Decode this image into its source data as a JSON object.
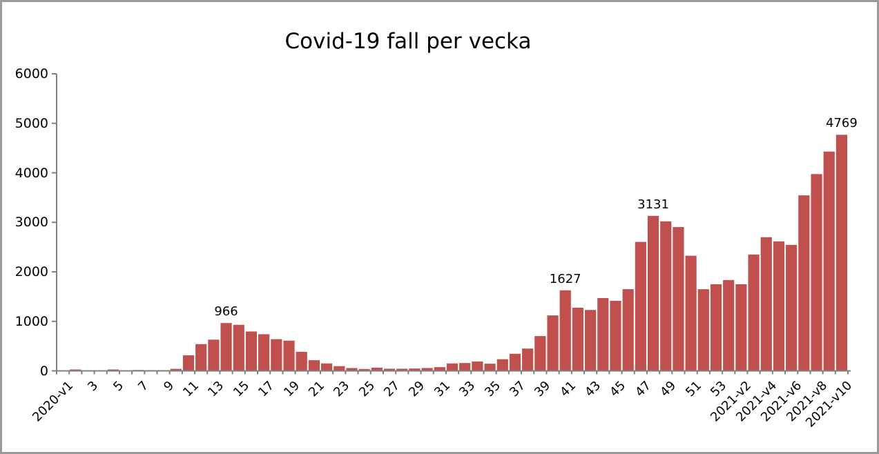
{
  "frame": {
    "background_color": "#ffffff",
    "border_color": "#9a9a9a"
  },
  "chart_data": {
    "type": "bar",
    "title": "Covid-19 fall per vecka",
    "xlabel": "",
    "ylabel": "",
    "ylim": [
      0,
      6000
    ],
    "yticks": [
      0,
      1000,
      2000,
      3000,
      4000,
      5000,
      6000
    ],
    "grid": false,
    "legend": null,
    "bar_color": "#C0504D",
    "axis_color": "#808080",
    "text_color": "#000000",
    "categories": [
      "2020-v1",
      "2020-v2",
      "2020-v3",
      "2020-v4",
      "2020-v5",
      "2020-v6",
      "2020-v7",
      "2020-v8",
      "2020-v9",
      "2020-v10",
      "2020-v11",
      "2020-v12",
      "2020-v13",
      "2020-v14",
      "2020-v15",
      "2020-v16",
      "2020-v17",
      "2020-v18",
      "2020-v19",
      "2020-v20",
      "2020-v21",
      "2020-v22",
      "2020-v23",
      "2020-v24",
      "2020-v25",
      "2020-v26",
      "2020-v27",
      "2020-v28",
      "2020-v29",
      "2020-v30",
      "2020-v31",
      "2020-v32",
      "2020-v33",
      "2020-v34",
      "2020-v35",
      "2020-v36",
      "2020-v37",
      "2020-v38",
      "2020-v39",
      "2020-v40",
      "2020-v41",
      "2020-v42",
      "2020-v43",
      "2020-v44",
      "2020-v45",
      "2020-v46",
      "2020-v47",
      "2020-v48",
      "2020-v49",
      "2020-v50",
      "2020-v51",
      "2020-v52",
      "2020-v53",
      "2021-v1",
      "2021-v2",
      "2021-v3",
      "2021-v4",
      "2021-v5",
      "2021-v6",
      "2021-v7",
      "2021-v8",
      "2021-v9",
      "2021-v10"
    ],
    "values": [
      5,
      28,
      4,
      6,
      28,
      10,
      18,
      15,
      15,
      40,
      315,
      540,
      630,
      966,
      930,
      795,
      740,
      640,
      610,
      385,
      215,
      150,
      95,
      57,
      38,
      65,
      43,
      43,
      47,
      57,
      75,
      150,
      158,
      190,
      145,
      235,
      345,
      450,
      703,
      1120,
      1627,
      1275,
      1230,
      1470,
      1415,
      1650,
      2605,
      3131,
      3020,
      2905,
      2325,
      1650,
      1750,
      1835,
      1750,
      2350,
      2700,
      2615,
      2545,
      3545,
      3975,
      4430,
      4769
    ],
    "xticks": [
      {
        "index": 0,
        "label": "2020-v1"
      },
      {
        "index": 2,
        "label": "3"
      },
      {
        "index": 4,
        "label": "5"
      },
      {
        "index": 6,
        "label": "7"
      },
      {
        "index": 8,
        "label": "9"
      },
      {
        "index": 10,
        "label": "11"
      },
      {
        "index": 12,
        "label": "13"
      },
      {
        "index": 14,
        "label": "15"
      },
      {
        "index": 16,
        "label": "17"
      },
      {
        "index": 18,
        "label": "19"
      },
      {
        "index": 20,
        "label": "21"
      },
      {
        "index": 22,
        "label": "23"
      },
      {
        "index": 24,
        "label": "25"
      },
      {
        "index": 26,
        "label": "27"
      },
      {
        "index": 28,
        "label": "29"
      },
      {
        "index": 30,
        "label": "31"
      },
      {
        "index": 32,
        "label": "33"
      },
      {
        "index": 34,
        "label": "35"
      },
      {
        "index": 36,
        "label": "37"
      },
      {
        "index": 38,
        "label": "39"
      },
      {
        "index": 40,
        "label": "41"
      },
      {
        "index": 42,
        "label": "43"
      },
      {
        "index": 44,
        "label": "45"
      },
      {
        "index": 46,
        "label": "47"
      },
      {
        "index": 48,
        "label": "49"
      },
      {
        "index": 50,
        "label": "51"
      },
      {
        "index": 52,
        "label": "53"
      },
      {
        "index": 54,
        "label": "2021-v2"
      },
      {
        "index": 56,
        "label": "2021-v4"
      },
      {
        "index": 58,
        "label": "2021-v6"
      },
      {
        "index": 60,
        "label": "2021-v8"
      },
      {
        "index": 62,
        "label": "2021-v10"
      }
    ],
    "data_labels": [
      {
        "index": 13,
        "text": "966"
      },
      {
        "index": 40,
        "text": "1627"
      },
      {
        "index": 47,
        "text": "3131"
      },
      {
        "index": 62,
        "text": "4769"
      }
    ]
  }
}
